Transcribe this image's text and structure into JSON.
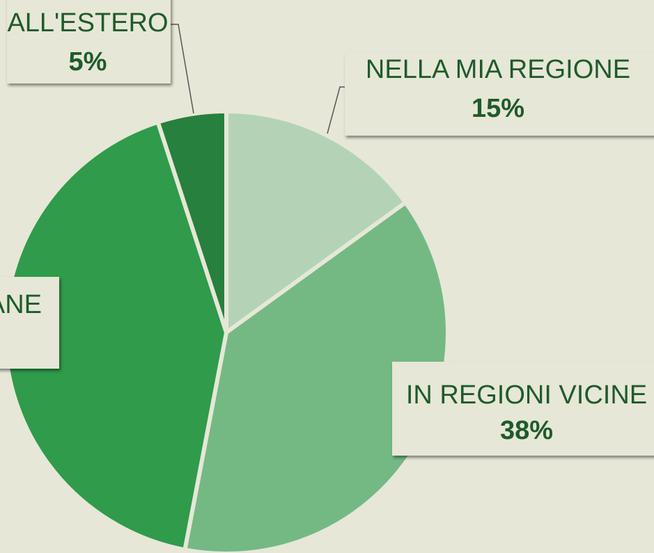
{
  "chart_data": {
    "type": "pie",
    "categories": [
      "NELLA MIA REGIONE",
      "IN REGIONI VICINE",
      "ANE",
      "ALL'ESTERO"
    ],
    "values": [
      15,
      38,
      42,
      5
    ],
    "value_labels": [
      "15%",
      "38%",
      null,
      "5%"
    ],
    "colors": [
      "#b3d3b7",
      "#74b983",
      "#2f9b4b",
      "#27803d"
    ]
  }
}
